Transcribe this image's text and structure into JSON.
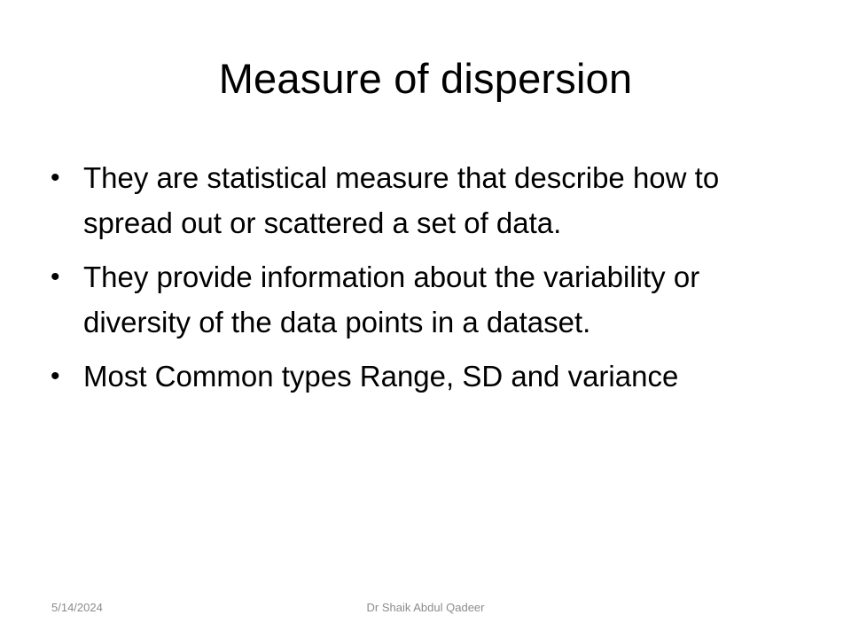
{
  "slide": {
    "title": "Measure of dispersion",
    "bullets": [
      {
        "marker": "•",
        "text": "They are statistical measure that describe how to spread out or scattered a set of data."
      },
      {
        "marker": "•",
        "text": "They provide information about the variability or diversity of the data points in a dataset."
      },
      {
        "marker": "•",
        "text": "Most Common types Range, SD and variance"
      }
    ]
  },
  "footer": {
    "date": "5/14/2024",
    "author": "Dr Shaik Abdul Qadeer"
  },
  "colors": {
    "background": "#ffffff",
    "text": "#000000",
    "footer_text": "#8c8c8c"
  }
}
